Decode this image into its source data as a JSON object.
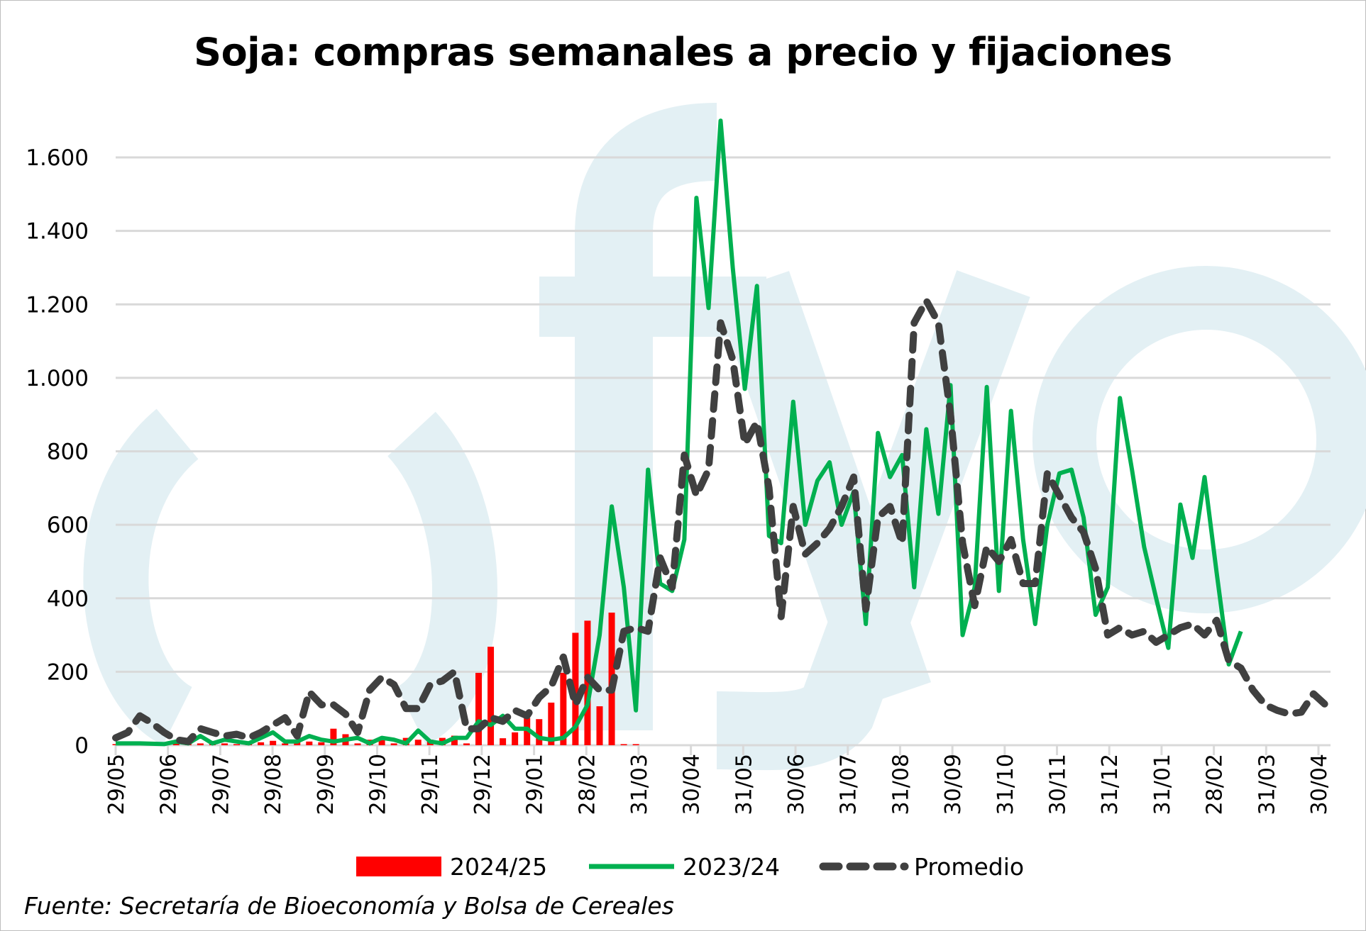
{
  "chart_data": {
    "type": "bar+line",
    "title": "Soja: compras semanales a precio y fijaciones",
    "source": "Fuente: Secretaría de Bioeconomía y Bolsa de Cereales",
    "watermark": "fyo",
    "xlabel": "",
    "ylabel": "",
    "ylim": [
      0,
      1700
    ],
    "yticks": [
      0,
      200,
      400,
      600,
      800,
      1000,
      1200,
      1400,
      1600
    ],
    "ytick_labels": [
      "0",
      "200",
      "400",
      "600",
      "800",
      "1.000",
      "1.200",
      "1.400",
      "1.600"
    ],
    "x_tick_labels": [
      "29/05",
      "29/06",
      "29/07",
      "29/08",
      "29/09",
      "29/10",
      "29/11",
      "29/12",
      "29/01",
      "28/02",
      "31/03",
      "30/04",
      "31/05",
      "30/06",
      "31/07",
      "31/08",
      "30/09",
      "31/10",
      "30/11",
      "31/12",
      "31/01",
      "28/02",
      "31/03",
      "30/04"
    ],
    "x_unit": "weeks since 29/05",
    "grid": true,
    "legend_position": "bottom",
    "series": [
      {
        "name": "2024/25",
        "type": "bar",
        "color": "#ff0000",
        "values": [
          3,
          3,
          3,
          3,
          3,
          5,
          8,
          5,
          3,
          5,
          3,
          3,
          8,
          12,
          5,
          8,
          10,
          8,
          45,
          30,
          5,
          15,
          15,
          5,
          20,
          15,
          15,
          20,
          26,
          5,
          197,
          268,
          19,
          35,
          74,
          71,
          116,
          197,
          306,
          339,
          106,
          361,
          3,
          3
        ]
      },
      {
        "name": "2023/24",
        "type": "line",
        "color": "#00b050",
        "values": [
          5,
          5,
          5,
          4,
          3,
          10,
          5,
          25,
          5,
          15,
          10,
          5,
          20,
          35,
          10,
          10,
          25,
          15,
          10,
          15,
          20,
          5,
          20,
          15,
          5,
          40,
          10,
          5,
          20,
          20,
          65,
          55,
          80,
          45,
          45,
          20,
          15,
          20,
          50,
          110,
          300,
          650,
          430,
          95,
          750,
          440,
          420,
          560,
          1490,
          1190,
          1700,
          1300,
          970,
          1250,
          570,
          550,
          935,
          600,
          720,
          770,
          600,
          690,
          330,
          850,
          730,
          790,
          430,
          860,
          630,
          980,
          300,
          430,
          975,
          420,
          910,
          560,
          330,
          600,
          740,
          750,
          620,
          355,
          430,
          945,
          750,
          540,
          400,
          265,
          655,
          510,
          730,
          470,
          220,
          310
        ]
      },
      {
        "name": "Promedio",
        "type": "line-dashed",
        "color": "#404040",
        "values": [
          20,
          35,
          80,
          60,
          35,
          15,
          10,
          45,
          35,
          25,
          30,
          20,
          35,
          55,
          75,
          25,
          145,
          110,
          110,
          85,
          35,
          150,
          185,
          165,
          100,
          100,
          165,
          175,
          200,
          45,
          45,
          75,
          65,
          95,
          80,
          130,
          160,
          240,
          110,
          185,
          150,
          150,
          310,
          320,
          310,
          510,
          430,
          790,
          680,
          750,
          1150,
          1050,
          820,
          880,
          700,
          350,
          650,
          520,
          550,
          590,
          650,
          730,
          370,
          620,
          650,
          550,
          1150,
          1210,
          1150,
          900,
          550,
          380,
          540,
          500,
          560,
          440,
          440,
          740,
          680,
          620,
          580,
          480,
          300,
          320,
          300,
          310,
          280,
          300,
          320,
          330,
          300,
          340,
          230,
          210,
          150,
          110,
          95,
          85,
          90,
          140,
          110
        ]
      }
    ]
  }
}
